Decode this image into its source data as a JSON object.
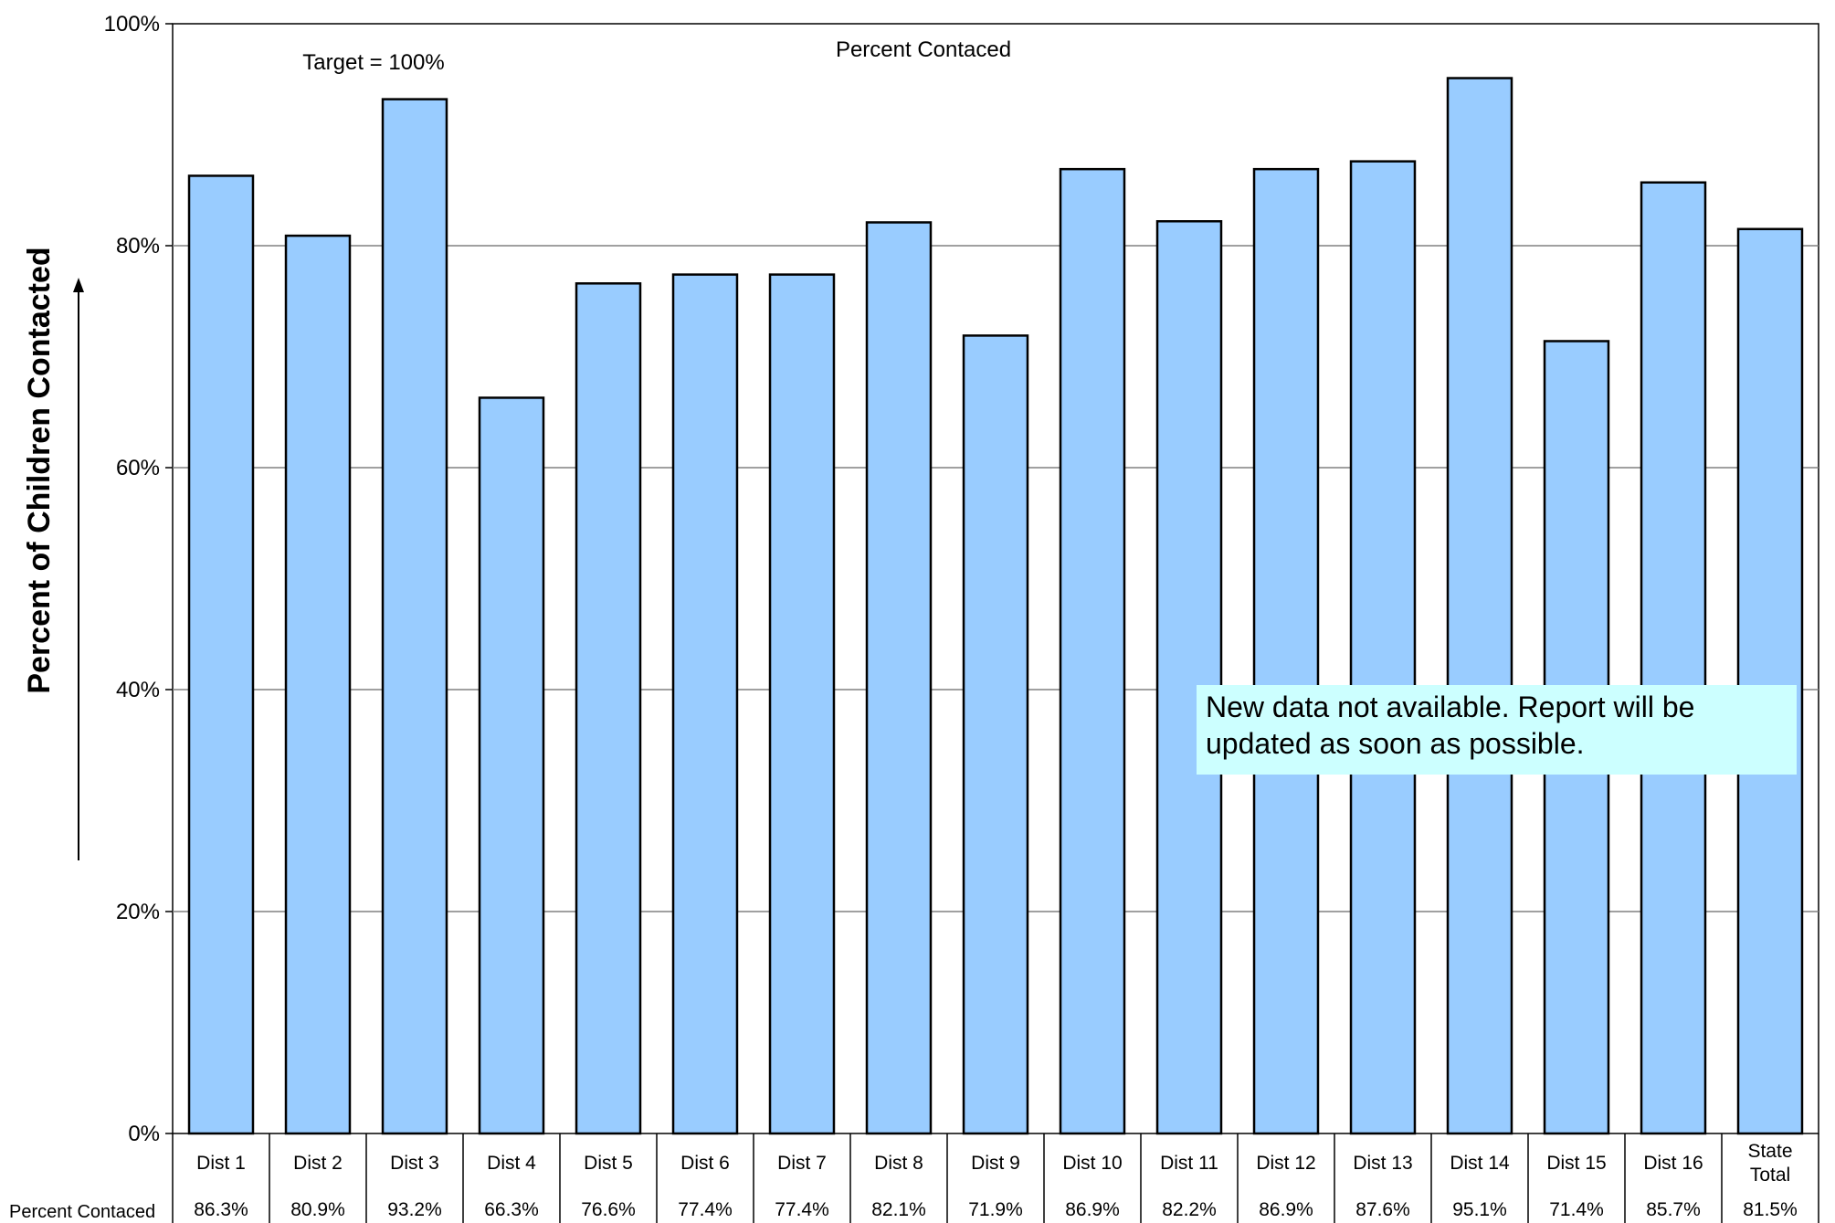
{
  "chart_data": {
    "type": "bar",
    "title": "Percent Contaced",
    "annotation_target": "Target = 100%",
    "ylabel": "Percent of Children Contacted",
    "ylim": [
      0,
      100
    ],
    "yticks": [
      "0%",
      "20%",
      "40%",
      "60%",
      "80%",
      "100%"
    ],
    "grid": true,
    "categories": [
      "Dist 1",
      "Dist 2",
      "Dist 3",
      "Dist 4",
      "Dist 5",
      "Dist 6",
      "Dist 7",
      "Dist 8",
      "Dist 9",
      "Dist 10",
      "Dist 11",
      "Dist 12",
      "Dist 13",
      "Dist 14",
      "Dist 15",
      "Dist 16",
      "State Total"
    ],
    "series": [
      {
        "name": "Percent Contaced",
        "values": [
          86.3,
          80.9,
          93.2,
          66.3,
          76.6,
          77.4,
          77.4,
          82.1,
          71.9,
          86.9,
          82.2,
          86.9,
          87.6,
          95.1,
          71.4,
          85.7,
          81.5
        ],
        "labels": [
          "86.3%",
          "80.9%",
          "93.2%",
          "66.3%",
          "76.6%",
          "77.4%",
          "77.4%",
          "82.1%",
          "71.9%",
          "86.9%",
          "82.2%",
          "86.9%",
          "87.6%",
          "95.1%",
          "71.4%",
          "85.7%",
          "81.5%"
        ]
      }
    ],
    "bar_color": "#99ccff",
    "table_row_label": "Percent Contaced"
  },
  "note": "New data not available. Report will be updated as soon as possible."
}
